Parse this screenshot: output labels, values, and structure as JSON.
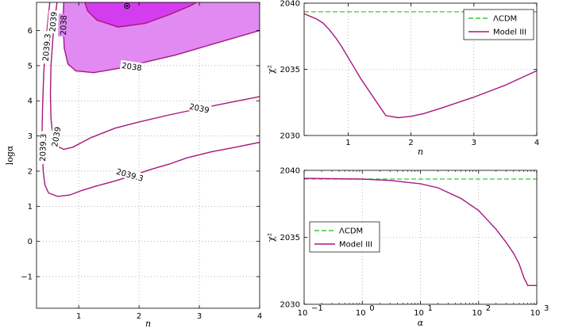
{
  "chart_data": [
    {
      "type": "contour",
      "xlabel": "n",
      "ylabel": "logα",
      "xlim": [
        0.3,
        4
      ],
      "ylim": [
        -1.9,
        6.8
      ],
      "xticks": [
        "1",
        "2",
        "3",
        "4"
      ],
      "yticks": [
        "−1",
        "0",
        "1",
        "2",
        "3",
        "4",
        "5",
        "6"
      ],
      "grid": true,
      "colors": {
        "outer_fill": "#e08af2",
        "inner_fill": "#d43cf0",
        "contour": "#a8167f",
        "marker": "#000000"
      },
      "best_fit": {
        "x": 1.8,
        "y": 6.7
      },
      "contours": [
        {
          "name": "inner",
          "label": "",
          "points": [
            [
              1.1,
              6.8
            ],
            [
              1.15,
              6.55
            ],
            [
              1.3,
              6.3
            ],
            [
              1.65,
              6.1
            ],
            [
              2.1,
              6.2
            ],
            [
              2.5,
              6.45
            ],
            [
              2.85,
              6.7
            ],
            [
              2.95,
              6.8
            ]
          ]
        },
        {
          "name": "2038",
          "label": "2038",
          "points": [
            [
              0.75,
              6.8
            ],
            [
              0.74,
              6.2
            ],
            [
              0.76,
              5.5
            ],
            [
              0.82,
              5.05
            ],
            [
              0.95,
              4.85
            ],
            [
              1.25,
              4.8
            ],
            [
              1.65,
              4.92
            ],
            [
              2.1,
              5.1
            ],
            [
              2.6,
              5.3
            ],
            [
              3.2,
              5.6
            ],
            [
              4.0,
              6.0
            ]
          ]
        },
        {
          "name": "2039",
          "label": "2039",
          "points": [
            [
              0.64,
              6.8
            ],
            [
              0.58,
              6.0
            ],
            [
              0.54,
              5.0
            ],
            [
              0.53,
              4.2
            ],
            [
              0.54,
              3.5
            ],
            [
              0.57,
              3.0
            ],
            [
              0.63,
              2.72
            ],
            [
              0.75,
              2.62
            ],
            [
              0.9,
              2.68
            ],
            [
              1.2,
              2.95
            ],
            [
              1.6,
              3.22
            ],
            [
              2.0,
              3.4
            ],
            [
              2.5,
              3.6
            ],
            [
              3.0,
              3.78
            ],
            [
              3.5,
              3.95
            ],
            [
              4.0,
              4.12
            ]
          ]
        },
        {
          "name": "2039.3",
          "label": "2039.3",
          "points": [
            [
              0.52,
              6.8
            ],
            [
              0.46,
              5.8
            ],
            [
              0.42,
              4.8
            ],
            [
              0.4,
              3.8
            ],
            [
              0.39,
              2.9
            ],
            [
              0.41,
              2.0
            ],
            [
              0.44,
              1.6
            ],
            [
              0.5,
              1.38
            ],
            [
              0.65,
              1.28
            ],
            [
              0.85,
              1.32
            ],
            [
              1.05,
              1.45
            ],
            [
              1.3,
              1.58
            ],
            [
              1.6,
              1.72
            ],
            [
              1.9,
              1.88
            ],
            [
              2.2,
              2.05
            ],
            [
              2.5,
              2.2
            ],
            [
              2.8,
              2.38
            ],
            [
              3.2,
              2.55
            ],
            [
              3.6,
              2.68
            ],
            [
              4.0,
              2.82
            ]
          ]
        }
      ],
      "contour_labels": [
        {
          "text": "2039.3",
          "x": 0.46,
          "y": 5.52,
          "angle": -85
        },
        {
          "text": "2039",
          "x": 0.57,
          "y": 6.25,
          "angle": -85
        },
        {
          "text": "2038",
          "x": 0.74,
          "y": 6.15,
          "angle": -88
        },
        {
          "text": "2038",
          "x": 1.88,
          "y": 4.98,
          "angle": 8
        },
        {
          "text": "2039",
          "x": 3.0,
          "y": 3.8,
          "angle": 12
        },
        {
          "text": "2039",
          "x": 0.62,
          "y": 2.98,
          "angle": -80
        },
        {
          "text": "2039.3",
          "x": 0.4,
          "y": 2.67,
          "angle": -88
        },
        {
          "text": "2039.3",
          "x": 1.85,
          "y": 1.9,
          "angle": 16
        }
      ]
    },
    {
      "type": "line",
      "xlabel": "n",
      "ylabel": "χ²",
      "xlim": [
        0.3,
        4
      ],
      "ylim": [
        2030,
        2040
      ],
      "xticks": [
        "1",
        "2",
        "3",
        "4"
      ],
      "yticks": [
        "2030",
        "2035",
        "2040"
      ],
      "grid": true,
      "legend": {
        "position": "top-right",
        "entries": [
          "ΛCDM",
          "Model III"
        ]
      },
      "series": [
        {
          "name": "ΛCDM",
          "style": "dashed",
          "color": "#33cc33",
          "x": [
            0.3,
            4
          ],
          "y": [
            2039.35,
            2039.35
          ]
        },
        {
          "name": "Model III",
          "style": "solid",
          "color": "#a8167f",
          "x": [
            0.3,
            0.4,
            0.5,
            0.6,
            0.7,
            0.8,
            0.9,
            1.0,
            1.1,
            1.2,
            1.4,
            1.6,
            1.8,
            2.0,
            2.2,
            2.5,
            3.0,
            3.5,
            4.0
          ],
          "y": [
            2039.2,
            2039.0,
            2038.8,
            2038.5,
            2038.0,
            2037.4,
            2036.7,
            2035.9,
            2035.1,
            2034.3,
            2032.9,
            2031.5,
            2031.35,
            2031.45,
            2031.65,
            2032.1,
            2032.9,
            2033.8,
            2034.9
          ]
        }
      ]
    },
    {
      "type": "line",
      "xlabel": "α",
      "ylabel": "χ²",
      "xscale": "log",
      "xlim": [
        0.1,
        1000
      ],
      "ylim": [
        2030,
        2040
      ],
      "xticks": [
        "10",
        "10",
        "10",
        "10",
        "10"
      ],
      "xtick_exponents": [
        "−1",
        "0",
        "1",
        "2",
        "3"
      ],
      "yticks": [
        "2030",
        "2035",
        "2040"
      ],
      "grid": true,
      "legend": {
        "position": "upper-left",
        "entries": [
          "ΛCDM",
          "Model III"
        ]
      },
      "series": [
        {
          "name": "ΛCDM",
          "style": "dashed",
          "color": "#33cc33",
          "x": [
            0.1,
            1000
          ],
          "y": [
            2039.35,
            2039.35
          ]
        },
        {
          "name": "Model III",
          "style": "solid",
          "color": "#a8167f",
          "x": [
            0.1,
            0.3,
            1,
            3,
            10,
            20,
            50,
            100,
            200,
            300,
            400,
            500,
            600,
            700,
            800,
            1000
          ],
          "y": [
            2039.4,
            2039.38,
            2039.35,
            2039.25,
            2039.0,
            2038.7,
            2037.9,
            2037.0,
            2035.6,
            2034.6,
            2033.8,
            2033.0,
            2032.0,
            2031.4,
            2031.4,
            2031.4
          ]
        }
      ]
    }
  ]
}
